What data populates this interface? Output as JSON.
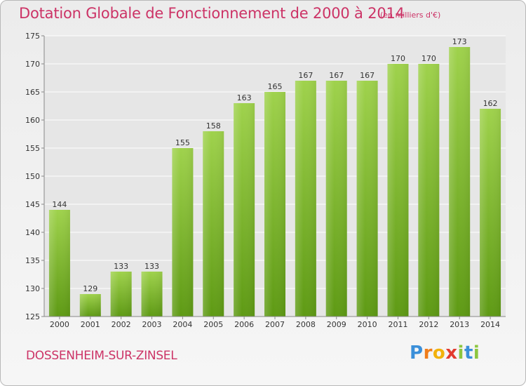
{
  "header": {
    "title": "Dotation Globale de Fonctionnement de 2000 à 2014",
    "subtitle": "(en milliers d'€)"
  },
  "footer": {
    "commune": "DOSSENHEIM-SUR-ZINSEL",
    "logo_letters": [
      "P",
      "r",
      "o",
      "x",
      "i",
      "t",
      "i"
    ],
    "logo_colors": [
      "#3b8fd9",
      "#f07d1a",
      "#f2b20c",
      "#e23b2f",
      "#8dc63f",
      "#3b8fd9",
      "#8dc63f"
    ]
  },
  "colors": {
    "bar_top": "#9fd24c",
    "bar_bottom": "#5e9a14",
    "axis": "#888888",
    "grid": "#ffffff",
    "title": "#cc3366",
    "text": "#333333"
  },
  "chart_data": {
    "type": "bar",
    "categories": [
      "2000",
      "2001",
      "2002",
      "2003",
      "2004",
      "2005",
      "2006",
      "2007",
      "2008",
      "2009",
      "2010",
      "2011",
      "2012",
      "2013",
      "2014"
    ],
    "values": [
      144,
      129,
      133,
      133,
      155,
      158,
      163,
      165,
      167,
      167,
      167,
      170,
      170,
      173,
      162
    ],
    "title": "Dotation Globale de Fonctionnement de 2000 à 2014",
    "subtitle": "(en milliers d'€)",
    "ylim": [
      125,
      175
    ],
    "yticks": [
      125,
      130,
      135,
      140,
      145,
      150,
      155,
      160,
      165,
      170,
      175
    ],
    "grid": true,
    "data_labels": true
  }
}
